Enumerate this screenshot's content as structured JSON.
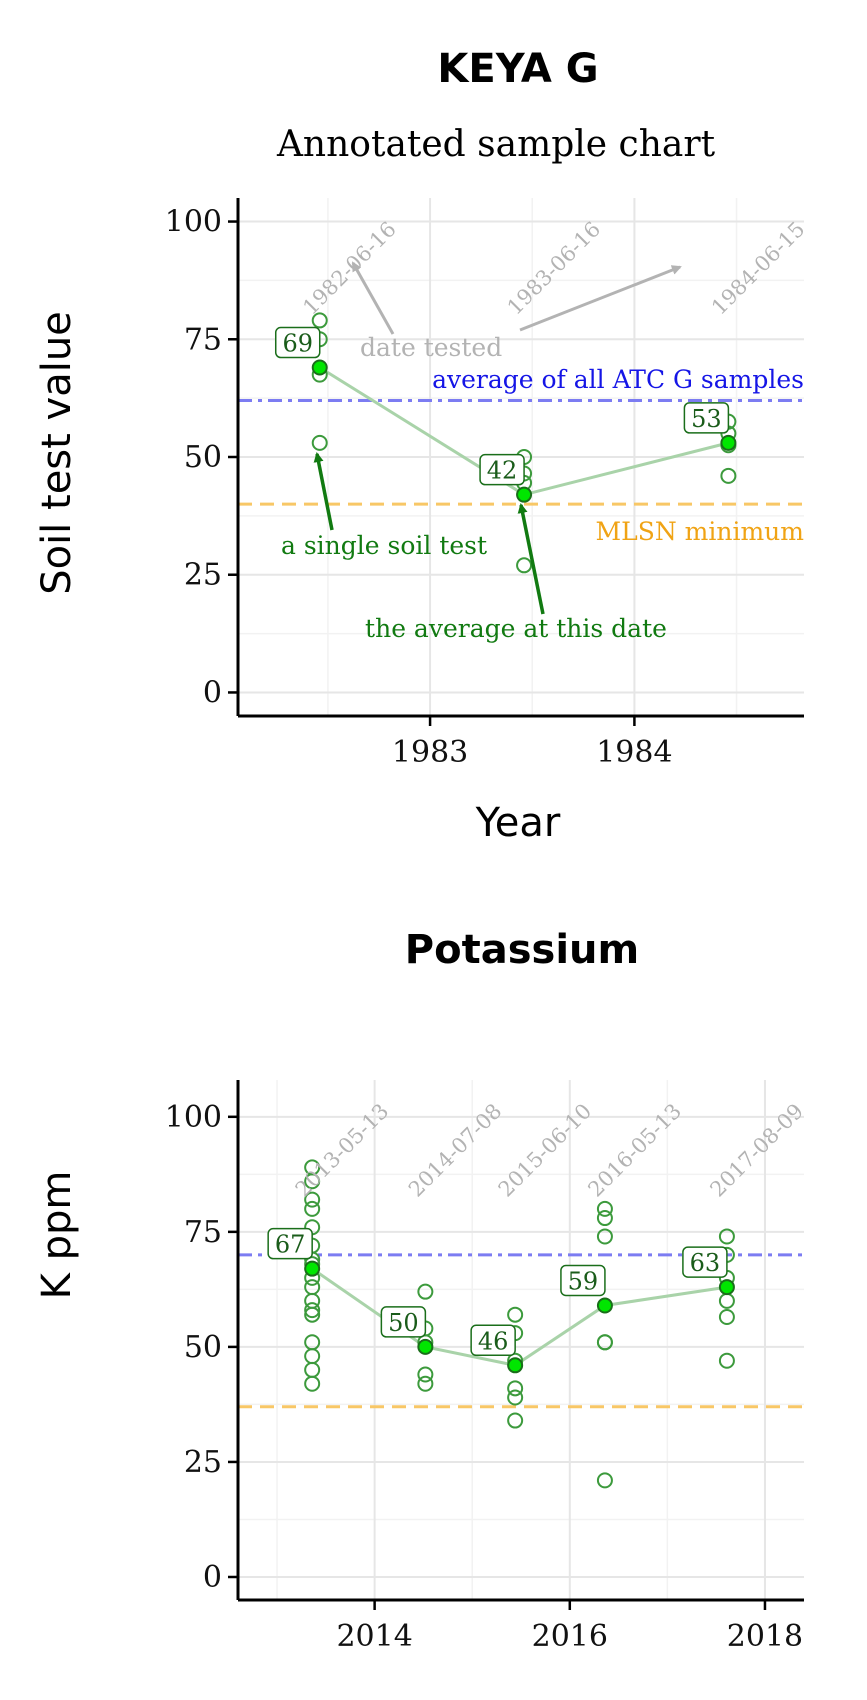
{
  "page": {
    "title": "KEYA G",
    "subtitle": "Annotated sample chart"
  },
  "colors": {
    "point": "#3c9a3c",
    "mean_fill": "#00e600",
    "mean_stroke": "#1a6e1a",
    "line": "#a9d3a9",
    "average": "#7c7cf2",
    "mlsn": "#f8c766",
    "date_text": "#b3b3b3",
    "annotation_green": "#117a11",
    "annotation_blue": "#1515e6",
    "annotation_orange": "#f0a314",
    "annotation_gray": "#b3b3b3"
  },
  "annotations": {
    "date_tested": "date tested",
    "average_all": "average of all ATC G samples",
    "mlsn_minimum": "MLSN minimum",
    "single_test": "a single soil test",
    "average_at_date": "the average at this date"
  },
  "chart_data": [
    {
      "type": "scatter",
      "title": "",
      "xlabel": "Year",
      "ylabel": "Soil test value",
      "xlim": [
        1982.06,
        1984.83
      ],
      "ylim": [
        -5,
        105
      ],
      "x_ticks": [
        1983,
        1984
      ],
      "y_ticks": [
        0,
        25,
        50,
        75,
        100
      ],
      "reference_lines": {
        "average": 62,
        "mlsn_minimum": 40
      },
      "dates": [
        {
          "label": "1982-06-16",
          "x": 1982.46,
          "mean": 69,
          "mean_label": "69",
          "samples": [
            79,
            75,
            67.5,
            53
          ]
        },
        {
          "label": "1983-06-16",
          "x": 1983.46,
          "mean": 42,
          "mean_label": "42",
          "samples": [
            50,
            46.5,
            44.5,
            27
          ]
        },
        {
          "label": "1984-06-15",
          "x": 1984.46,
          "mean": 53,
          "mean_label": "53",
          "samples": [
            57.5,
            55,
            52.5,
            46
          ]
        }
      ]
    },
    {
      "type": "scatter",
      "title": "Potassium",
      "xlabel": "",
      "ylabel": "K ppm",
      "xlim": [
        2012.6,
        2018.4
      ],
      "ylim": [
        -5,
        108
      ],
      "x_ticks": [
        2014,
        2016,
        2018
      ],
      "y_ticks": [
        0,
        25,
        50,
        75,
        100
      ],
      "reference_lines": {
        "average": 70,
        "mlsn_minimum": 37
      },
      "dates": [
        {
          "label": "2013-05-13",
          "x": 2013.36,
          "mean": 67,
          "mean_label": "67",
          "samples": [
            89,
            86,
            82,
            80,
            76,
            72,
            69,
            68,
            65,
            63,
            60,
            58,
            57,
            51,
            48,
            45,
            42
          ]
        },
        {
          "label": "2014-07-08",
          "x": 2014.52,
          "mean": 50,
          "mean_label": "50",
          "samples": [
            62,
            54,
            51,
            44,
            42
          ]
        },
        {
          "label": "2015-06-10",
          "x": 2015.44,
          "mean": 46,
          "mean_label": "46",
          "samples": [
            57,
            53,
            47,
            41,
            39,
            34
          ]
        },
        {
          "label": "2016-05-13",
          "x": 2016.36,
          "mean": 59,
          "mean_label": "59",
          "samples": [
            80,
            78,
            74,
            51,
            51,
            21
          ]
        },
        {
          "label": "2017-08-09",
          "x": 2017.61,
          "mean": 63,
          "mean_label": "63",
          "samples": [
            74,
            70,
            65,
            60,
            56.5,
            47
          ]
        }
      ]
    }
  ]
}
